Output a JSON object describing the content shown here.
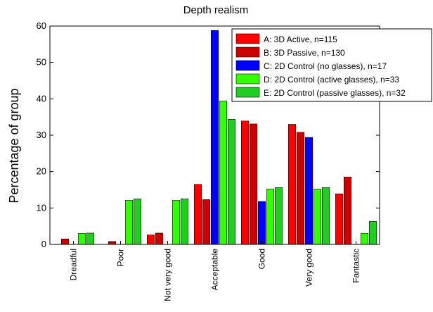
{
  "chart_data": {
    "type": "bar",
    "title": "Depth realism",
    "xlabel": "",
    "ylabel": "Percentage of group",
    "ylim": [
      0,
      60
    ],
    "yticks": [
      0,
      10,
      20,
      30,
      40,
      50,
      60
    ],
    "categories": [
      "Dreadful",
      "Poor",
      "Not very good",
      "Acceptable",
      "Good",
      "Very good",
      "Fantastic"
    ],
    "series": [
      {
        "name": "A: 3D Active, n=115",
        "color": "#ff0000",
        "values": [
          0,
          0,
          2.6,
          16.5,
          33.9,
          33.0,
          13.9
        ]
      },
      {
        "name": "B: 3D Passive, n=130",
        "color": "#cc0000",
        "values": [
          1.5,
          0.8,
          3.1,
          12.3,
          33.1,
          30.8,
          18.5
        ]
      },
      {
        "name": "C: 2D Control (no glasses), n=17",
        "color": "#0000ff",
        "values": [
          0,
          0,
          0,
          58.8,
          11.8,
          29.4,
          0
        ]
      },
      {
        "name": "D: 2D Control (active glasses), n=33",
        "color": "#33ff00",
        "values": [
          3.0,
          12.1,
          12.1,
          39.4,
          15.2,
          15.2,
          3.0
        ]
      },
      {
        "name": "E: 2D Control (passive glasses), n=32",
        "color": "#22cc22",
        "values": [
          3.1,
          12.5,
          12.5,
          34.4,
          15.6,
          15.6,
          6.3
        ]
      }
    ],
    "legend": "top-right",
    "grid": false
  }
}
